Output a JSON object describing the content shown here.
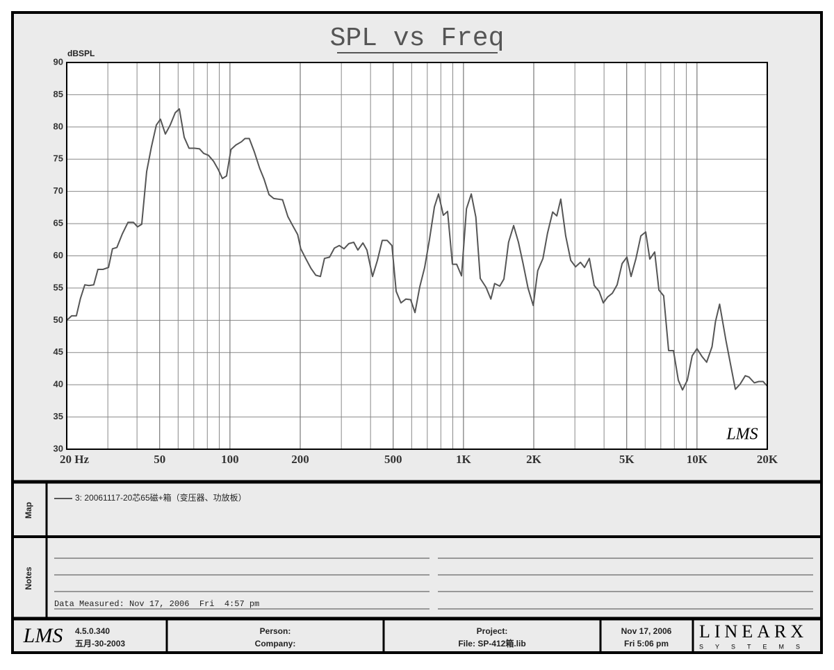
{
  "chart_data": {
    "type": "line",
    "title": "SPL vs Freq",
    "y_label": "dBSPL",
    "watermark": "LMS",
    "log_x": true,
    "grid": true,
    "xlim": [
      20,
      20000
    ],
    "ylim": [
      30,
      90
    ],
    "xticks": [
      {
        "value": 20,
        "label": "20 Hz"
      },
      50,
      100,
      200,
      500,
      {
        "value": 1000,
        "label": "1K"
      },
      {
        "value": 2000,
        "label": "2K"
      },
      {
        "value": 5000,
        "label": "5K"
      },
      {
        "value": 10000,
        "label": "10K"
      },
      {
        "value": 20000,
        "label": "20K"
      }
    ],
    "xminor": [
      30,
      40,
      60,
      70,
      80,
      90,
      300,
      400,
      600,
      700,
      800,
      900,
      3000,
      4000,
      6000,
      7000,
      8000,
      9000
    ],
    "yticks": [
      30,
      35,
      40,
      45,
      50,
      55,
      60,
      65,
      70,
      75,
      80,
      85,
      90
    ],
    "x": [
      20,
      21,
      22,
      22.9,
      23.9,
      24.9,
      26.1,
      27.2,
      28.6,
      30.2,
      31.4,
      32.8,
      34.6,
      36.6,
      38.6,
      40.2,
      41.9,
      44,
      46.1,
      48.4,
      50.4,
      52.9,
      55.5,
      58.3,
      60.7,
      63.7,
      66.8,
      70.6,
      74.1,
      77.2,
      80.9,
      85,
      89.1,
      92.8,
      96.7,
      101,
      106,
      112,
      116,
      121,
      127,
      134,
      140,
      147,
      154,
      161,
      168,
      177,
      185,
      195,
      201,
      211,
      222,
      233,
      244,
      254,
      267,
      280,
      294,
      308,
      323,
      339,
      353,
      371,
      386,
      408,
      428,
      449,
      471,
      494,
      515,
      540,
      567,
      594,
      620,
      650,
      682,
      715,
      751,
      782,
      820,
      855,
      897,
      935,
      981,
      1030,
      1080,
      1130,
      1180,
      1250,
      1310,
      1360,
      1430,
      1490,
      1560,
      1640,
      1720,
      1800,
      1890,
      1990,
      2080,
      2190,
      2290,
      2410,
      2510,
      2610,
      2740,
      2880,
      3020,
      3170,
      3300,
      3460,
      3630,
      3810,
      3970,
      4140,
      4340,
      4550,
      4780,
      5010,
      5220,
      5480,
      5750,
      6030,
      6280,
      6590,
      6870,
      7200,
      7560,
      7930,
      8320,
      8670,
      9090,
      9540,
      10000,
      10500,
      11000,
      11600,
      12000,
      12500,
      13300,
      13900,
      14600,
      15300,
      16100,
      16700,
      17600,
      18400,
      19200,
      20000
    ],
    "series": [
      {
        "name": "3: 20061117-20芯65磁+箱（变压器、功放板）",
        "color": "#555555",
        "values": [
          50.0,
          50.7,
          50.7,
          53.4,
          55.5,
          55.4,
          55.5,
          57.9,
          57.9,
          58.2,
          61.1,
          61.3,
          63.4,
          65.2,
          65.2,
          64.5,
          64.9,
          73.1,
          76.9,
          80.3,
          81.2,
          78.9,
          80.3,
          82.2,
          82.8,
          78.4,
          76.7,
          76.7,
          76.6,
          75.9,
          75.6,
          74.7,
          73.4,
          72.0,
          72.4,
          76.5,
          77.2,
          77.7,
          78.2,
          78.2,
          76.2,
          73.6,
          71.9,
          69.5,
          68.9,
          68.8,
          68.7,
          66.1,
          64.8,
          63.3,
          61.1,
          59.6,
          58.1,
          57.0,
          56.8,
          59.6,
          59.8,
          61.2,
          61.6,
          61.1,
          61.9,
          62.1,
          60.9,
          62.0,
          60.9,
          56.8,
          59.3,
          62.4,
          62.4,
          61.6,
          54.5,
          52.7,
          53.3,
          53.2,
          51.2,
          55.2,
          58.2,
          62.5,
          67.6,
          69.6,
          66.3,
          66.9,
          58.7,
          58.7,
          56.9,
          67.3,
          69.6,
          66.0,
          56.5,
          55.1,
          53.3,
          55.7,
          55.3,
          56.4,
          62.1,
          64.7,
          62.1,
          58.8,
          55.0,
          52.3,
          57.7,
          59.6,
          63.5,
          66.8,
          66.2,
          68.8,
          63.1,
          59.3,
          58.3,
          59.0,
          58.2,
          59.6,
          55.4,
          54.5,
          52.7,
          53.6,
          54.2,
          55.5,
          58.8,
          59.8,
          56.8,
          59.6,
          63.1,
          63.7,
          59.5,
          60.6,
          54.7,
          53.8,
          45.3,
          45.3,
          40.7,
          39.2,
          40.7,
          44.5,
          45.6,
          44.4,
          43.5,
          45.9,
          49.8,
          52.5,
          46.9,
          43.3,
          39.3,
          40.1,
          41.4,
          41.2,
          40.3,
          40.5,
          40.5,
          39.8
        ]
      }
    ]
  },
  "map": {
    "label": "Map"
  },
  "notes": {
    "label": "Notes",
    "text": "Data Measured: Nov 17, 2006  Fri  4:57 pm"
  },
  "footer": {
    "logo": "LMS",
    "version": "4.5.0.340",
    "version_date": "五月-30-2003",
    "person": "Person:",
    "company": "Company:",
    "project": "Project:",
    "file": "File: SP-412箱.lib",
    "date": "Nov 17, 2006",
    "time": "Fri  5:06 pm",
    "brand": "LINEARX",
    "brand_sub": "SYSTEMS"
  }
}
